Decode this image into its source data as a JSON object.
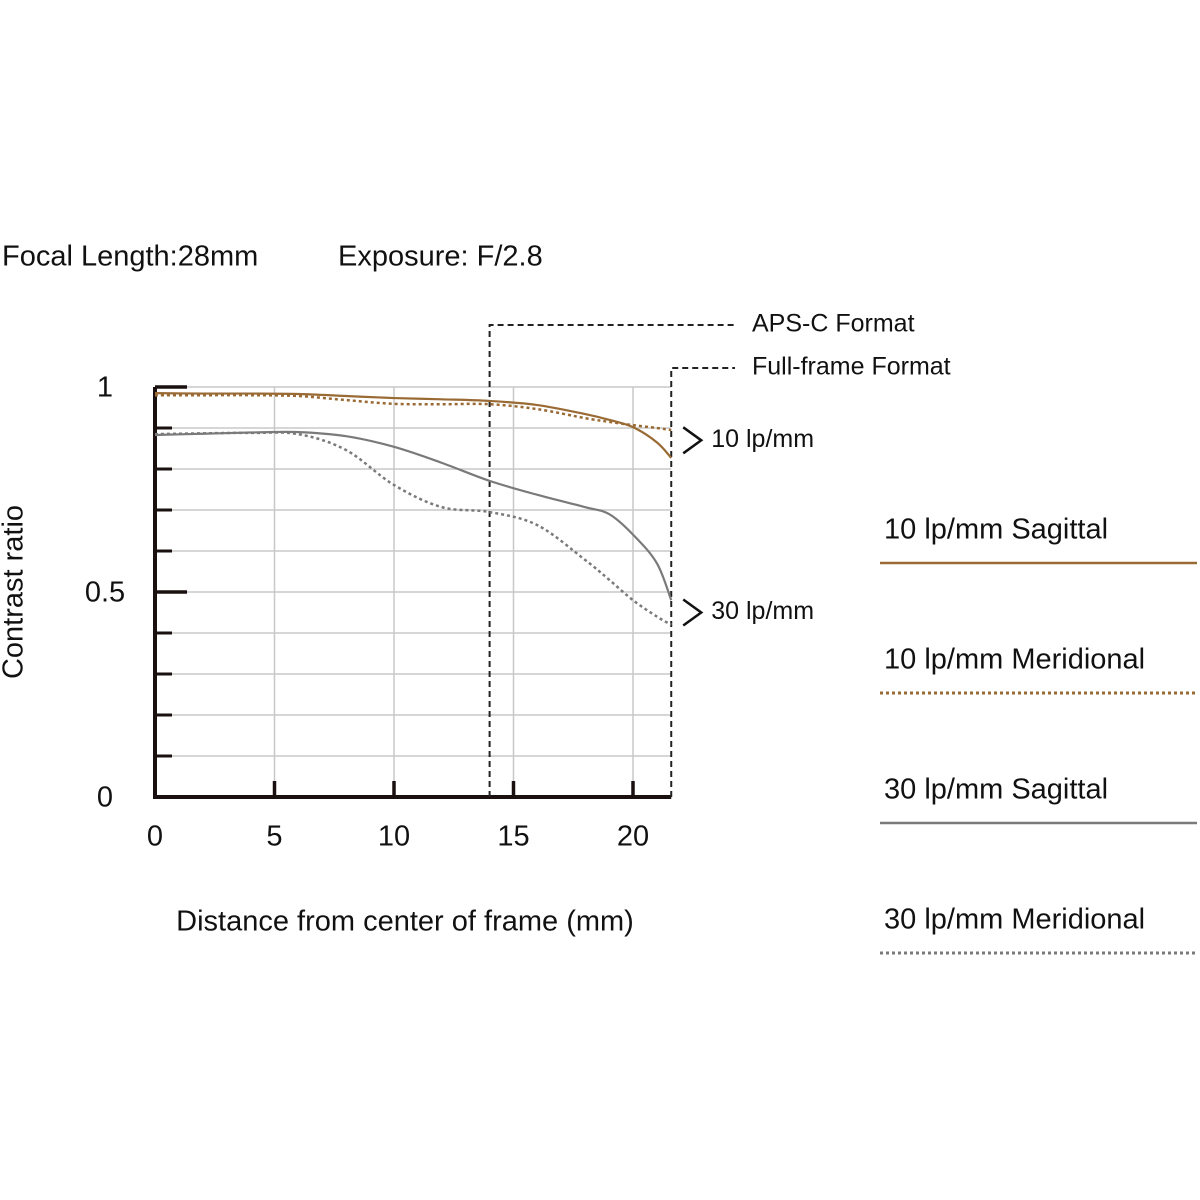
{
  "chart_data": {
    "type": "line",
    "title": "Focal Length:28mm",
    "subtitle": "Exposure: F/2.8",
    "x_label": "Distance from center of frame (mm)",
    "y_label": "Contrast ratio",
    "x": [
      0,
      2,
      4,
      6,
      8,
      10,
      12,
      14,
      16,
      18,
      19,
      20,
      21,
      21.6
    ],
    "series": [
      {
        "name": "10 lp/mm Sagittal",
        "color": "#9a6a34",
        "dashed": false,
        "values": [
          0.985,
          0.984,
          0.984,
          0.983,
          0.978,
          0.973,
          0.97,
          0.966,
          0.956,
          0.934,
          0.92,
          0.902,
          0.865,
          0.827
        ]
      },
      {
        "name": "10 lp/mm Meridional",
        "color": "#9a6a34",
        "dashed": true,
        "values": [
          0.98,
          0.98,
          0.98,
          0.978,
          0.968,
          0.959,
          0.958,
          0.958,
          0.946,
          0.924,
          0.915,
          0.907,
          0.9,
          0.895
        ]
      },
      {
        "name": "30 lp/mm Sagittal",
        "color": "#7a7a7a",
        "dashed": false,
        "values": [
          0.883,
          0.886,
          0.889,
          0.89,
          0.88,
          0.854,
          0.815,
          0.771,
          0.737,
          0.707,
          0.69,
          0.64,
          0.57,
          0.48
        ]
      },
      {
        "name": "30 lp/mm Meridional",
        "color": "#7a7a7a",
        "dashed": true,
        "values": [
          0.885,
          0.887,
          0.888,
          0.885,
          0.846,
          0.761,
          0.707,
          0.695,
          0.663,
          0.578,
          0.53,
          0.48,
          0.44,
          0.42
        ]
      }
    ],
    "xlim": [
      0,
      21.6
    ],
    "xticks": [
      0,
      5,
      10,
      15,
      20
    ],
    "ylim": [
      0,
      1
    ],
    "yticks": [
      0,
      0.5,
      1
    ],
    "minor_yticks": [
      0.1,
      0.2,
      0.3,
      0.4,
      0.6,
      0.7,
      0.8,
      0.9
    ],
    "grid": true,
    "format_lines": [
      {
        "label": "APS-C Format",
        "x": 14
      },
      {
        "label": "Full-frame Format",
        "x": 21.6
      }
    ],
    "curve_labels": [
      {
        "text": "10 lp/mm",
        "y": 0.87
      },
      {
        "text": "30 lp/mm",
        "y": 0.45
      }
    ]
  }
}
